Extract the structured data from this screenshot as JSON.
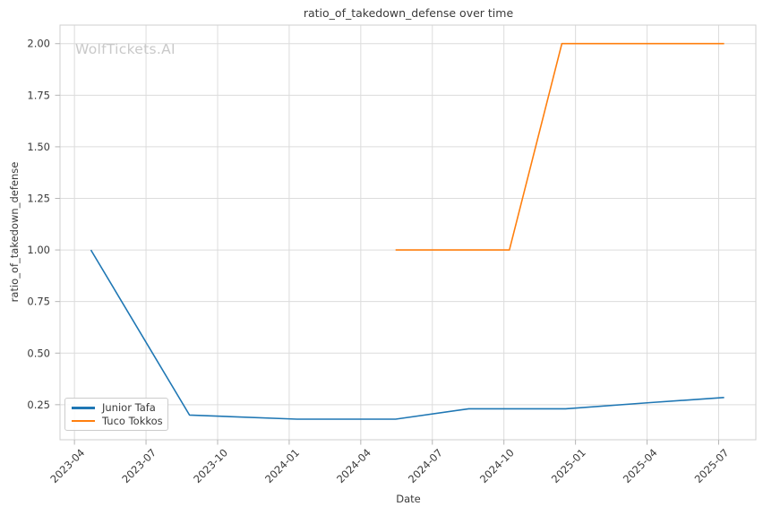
{
  "colors": {
    "background": "#ffffff",
    "grid": "#dcdcdc",
    "frame": "#cfcfcf",
    "tick": "#b5b5b5",
    "text": "#3a3a3a",
    "watermark_text": "#c9c9c9",
    "series_blue": "#1f77b4",
    "series_orange": "#ff7f0e"
  },
  "chart_data": {
    "type": "line",
    "title": "ratio_of_takedown_defense over time",
    "xlabel": "Date",
    "ylabel": "ratio_of_takedown_defense",
    "watermark": "WolfTickets.AI",
    "grid": true,
    "legend": {
      "position": "lower left",
      "entries": [
        "Junior Tafa",
        "Tuco Tokkos"
      ]
    },
    "x_ticks": [
      "2023-04",
      "2023-07",
      "2023-10",
      "2024-01",
      "2024-04",
      "2024-07",
      "2024-10",
      "2025-01",
      "2025-04",
      "2025-07"
    ],
    "y_ticks": [
      "0.25",
      "0.50",
      "0.75",
      "1.00",
      "1.25",
      "1.50",
      "1.75",
      "2.00"
    ],
    "xlim": [
      "2023-03-13",
      "2025-08-18"
    ],
    "ylim": [
      0.08,
      2.09
    ],
    "series": [
      {
        "name": "Junior Tafa",
        "color": "#1f77b4",
        "points": [
          [
            "2023-04-22",
            1.0
          ],
          [
            "2023-08-26",
            0.2
          ],
          [
            "2024-01-11",
            0.18
          ],
          [
            "2024-05-15",
            0.18
          ],
          [
            "2024-08-17",
            0.23
          ],
          [
            "2024-12-19",
            0.23
          ],
          [
            "2025-04-05",
            0.26
          ],
          [
            "2025-07-08",
            0.285
          ]
        ]
      },
      {
        "name": "Tuco Tokkos",
        "color": "#ff7f0e",
        "points": [
          [
            "2024-05-15",
            1.0
          ],
          [
            "2024-10-08",
            1.0
          ],
          [
            "2024-12-14",
            2.0
          ],
          [
            "2025-07-08",
            2.0
          ]
        ]
      }
    ]
  }
}
